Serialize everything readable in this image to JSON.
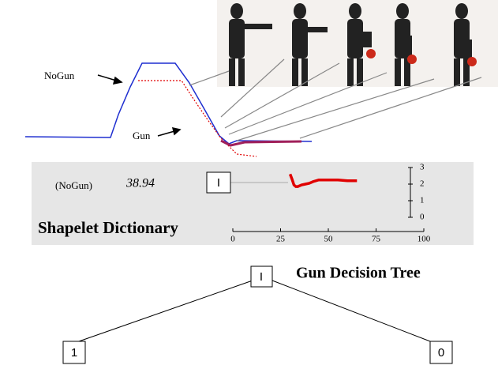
{
  "labels": {
    "nogun": "NoGun",
    "gun": "Gun"
  },
  "dictionary": {
    "class": "(NoGun)",
    "distance": "38.94",
    "node": "I",
    "title": "Shapelet Dictionary"
  },
  "chart_data": {
    "type": "line",
    "x": [
      30,
      31,
      32,
      33,
      34,
      36,
      38,
      40,
      42,
      45,
      50,
      55,
      60,
      65
    ],
    "series": [
      {
        "color": "#e00000",
        "values": [
          2.6,
          2.3,
          1.95,
          1.85,
          1.85,
          1.95,
          2.0,
          2.05,
          2.15,
          2.25,
          2.25,
          2.25,
          2.2,
          2.2
        ]
      }
    ],
    "xlim": [
      0,
      100
    ],
    "xticks": [
      0,
      25,
      50,
      75,
      100
    ],
    "ylim": [
      0,
      3
    ],
    "yticks": [
      0,
      1,
      2,
      3
    ]
  },
  "tree": {
    "title": "Gun Decision Tree",
    "root": "I",
    "left": "1",
    "right": "0"
  }
}
